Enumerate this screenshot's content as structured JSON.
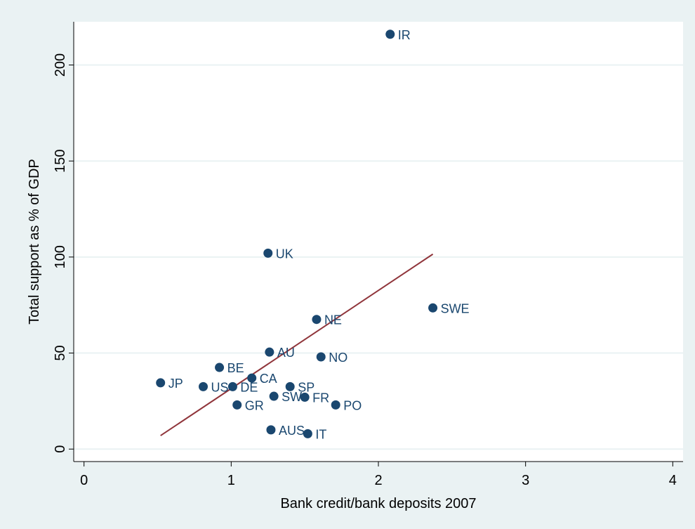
{
  "chart_data": {
    "type": "scatter",
    "title": "",
    "xlabel": "Bank credit/bank deposits 2007",
    "ylabel": "Total support as % of GDP",
    "xlim": [
      -0.07,
      4.07
    ],
    "ylim": [
      -6.5,
      222.5
    ],
    "xticks": [
      0,
      1,
      2,
      3,
      4
    ],
    "yticks": [
      0,
      50,
      100,
      150,
      200
    ],
    "grid": "horizontal",
    "legend": "none",
    "colors": {
      "background": "#eaf2f3",
      "plot_area": "#ffffff",
      "marker": "#1a476f",
      "label": "#1a476f",
      "fit_line": "#90353b",
      "grid": "#eaf2f3",
      "axis": "#000000"
    },
    "points": [
      {
        "label": "IR",
        "x": 2.08,
        "y": 216
      },
      {
        "label": "UK",
        "x": 1.25,
        "y": 102
      },
      {
        "label": "SWE",
        "x": 2.37,
        "y": 73.5
      },
      {
        "label": "NE",
        "x": 1.58,
        "y": 67.5
      },
      {
        "label": "AU",
        "x": 1.26,
        "y": 50.5
      },
      {
        "label": "NO",
        "x": 1.61,
        "y": 48
      },
      {
        "label": "BE",
        "x": 0.92,
        "y": 42.5
      },
      {
        "label": "CA",
        "x": 1.14,
        "y": 37
      },
      {
        "label": "JP",
        "x": 0.52,
        "y": 34.5
      },
      {
        "label": "US",
        "x": 0.81,
        "y": 32.5
      },
      {
        "label": "DE",
        "x": 1.01,
        "y": 32.5
      },
      {
        "label": "SP",
        "x": 1.4,
        "y": 32.5
      },
      {
        "label": "SW",
        "x": 1.29,
        "y": 27.5
      },
      {
        "label": "FR",
        "x": 1.5,
        "y": 27
      },
      {
        "label": "PO",
        "x": 1.71,
        "y": 23
      },
      {
        "label": "GR",
        "x": 1.04,
        "y": 23
      },
      {
        "label": "AUS",
        "x": 1.27,
        "y": 10
      },
      {
        "label": "IT",
        "x": 1.52,
        "y": 8
      }
    ],
    "fit_line": {
      "x": [
        0.52,
        2.37
      ],
      "y": [
        7,
        101.5
      ]
    }
  }
}
